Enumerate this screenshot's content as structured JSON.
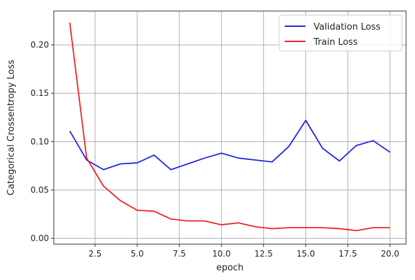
{
  "chart_data": {
    "type": "line",
    "title": "",
    "xlabel": "epoch",
    "ylabel": "Categorical Crossentropy Loss",
    "xlim": [
      0.05,
      20.95
    ],
    "ylim": [
      -0.006,
      0.235
    ],
    "xticks": [
      2.5,
      5.0,
      7.5,
      10.0,
      12.5,
      15.0,
      17.5,
      20.0
    ],
    "xtick_labels": [
      "2.5",
      "5.0",
      "7.5",
      "10.0",
      "12.5",
      "15.0",
      "17.5",
      "20.0"
    ],
    "yticks": [
      0.0,
      0.05,
      0.1,
      0.15,
      0.2
    ],
    "ytick_labels": [
      "0.00",
      "0.05",
      "0.10",
      "0.15",
      "0.20"
    ],
    "grid": true,
    "legend_position": "top-right",
    "x": [
      1,
      2,
      3,
      4,
      5,
      6,
      7,
      8,
      9,
      10,
      11,
      12,
      13,
      14,
      15,
      16,
      17,
      18,
      19,
      20
    ],
    "series": [
      {
        "name": "Validation Loss",
        "color": "#2222ee",
        "values": [
          0.111,
          0.081,
          0.071,
          0.077,
          0.078,
          0.086,
          0.071,
          0.077,
          0.083,
          0.088,
          0.083,
          0.081,
          0.079,
          0.095,
          0.122,
          0.093,
          0.08,
          0.096,
          0.101,
          0.089
        ]
      },
      {
        "name": "Train Loss",
        "color": "#ee2222",
        "values": [
          0.223,
          0.083,
          0.054,
          0.039,
          0.029,
          0.028,
          0.02,
          0.018,
          0.018,
          0.014,
          0.016,
          0.012,
          0.01,
          0.011,
          0.011,
          0.011,
          0.01,
          0.008,
          0.011,
          0.011
        ]
      }
    ]
  }
}
